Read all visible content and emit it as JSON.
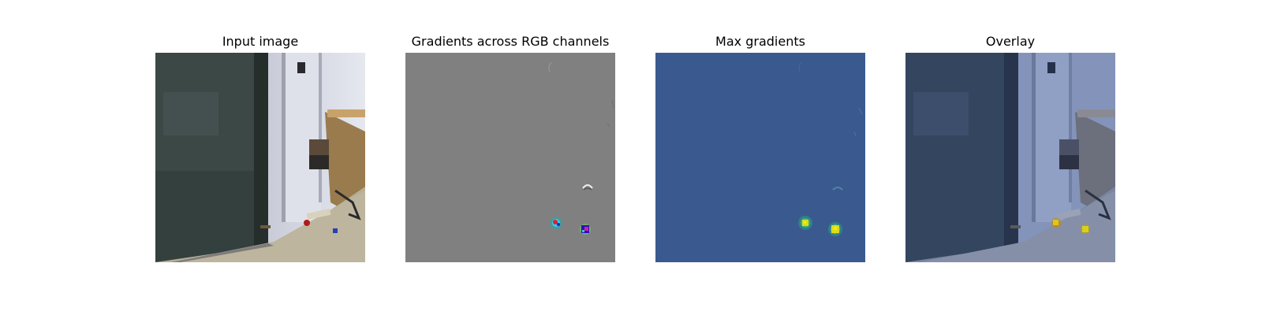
{
  "panels": [
    {
      "title": "Input image"
    },
    {
      "title": "Gradients across RGB channels"
    },
    {
      "title": "Max gradients"
    },
    {
      "title": "Overlay"
    }
  ],
  "colors": {
    "page_background": "#ffffff",
    "gradient_gray": "#808080",
    "heatmap_background": "#3a5a8f",
    "heatmap_hot": "#e6e300",
    "overlay_tint": "#3e5c92"
  }
}
